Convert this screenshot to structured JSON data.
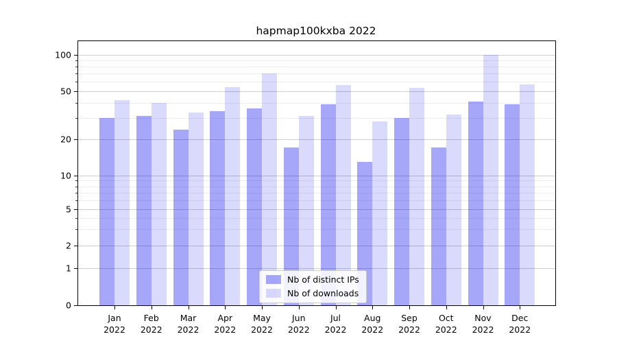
{
  "chart_data": {
    "type": "bar",
    "title": "hapmap100kxba 2022",
    "xlabel": "",
    "ylabel": "",
    "categories": [
      "Jan",
      "Feb",
      "Mar",
      "Apr",
      "May",
      "Jun",
      "Jul",
      "Aug",
      "Sep",
      "Oct",
      "Nov",
      "Dec"
    ],
    "category_year_line": "2022",
    "series": [
      {
        "name": "Nb of distinct IPs",
        "color": "rgba(0, 0, 238, 0.345)",
        "color_rendered_hex": "#a8a8f7",
        "values": [
          30,
          31,
          24,
          34,
          36,
          17,
          39,
          13,
          30,
          17,
          41,
          39
        ]
      },
      {
        "name": "Nb of downloads",
        "color": "rgba(0, 0, 238, 0.145)",
        "color_rendered_hex": "#dadafb",
        "values": [
          42,
          40,
          33,
          54,
          70,
          31,
          56,
          28,
          53,
          32,
          100,
          57
        ]
      }
    ],
    "yscale": "symlog",
    "ylim": [
      0,
      130
    ],
    "ytick_values": [
      100,
      50,
      20,
      10,
      5,
      2,
      1,
      0
    ],
    "minor_gridline_values": [
      3,
      4,
      6,
      7,
      8,
      9,
      30,
      40,
      60,
      70,
      80,
      90
    ],
    "grid": true,
    "legend_position": "lower center"
  }
}
